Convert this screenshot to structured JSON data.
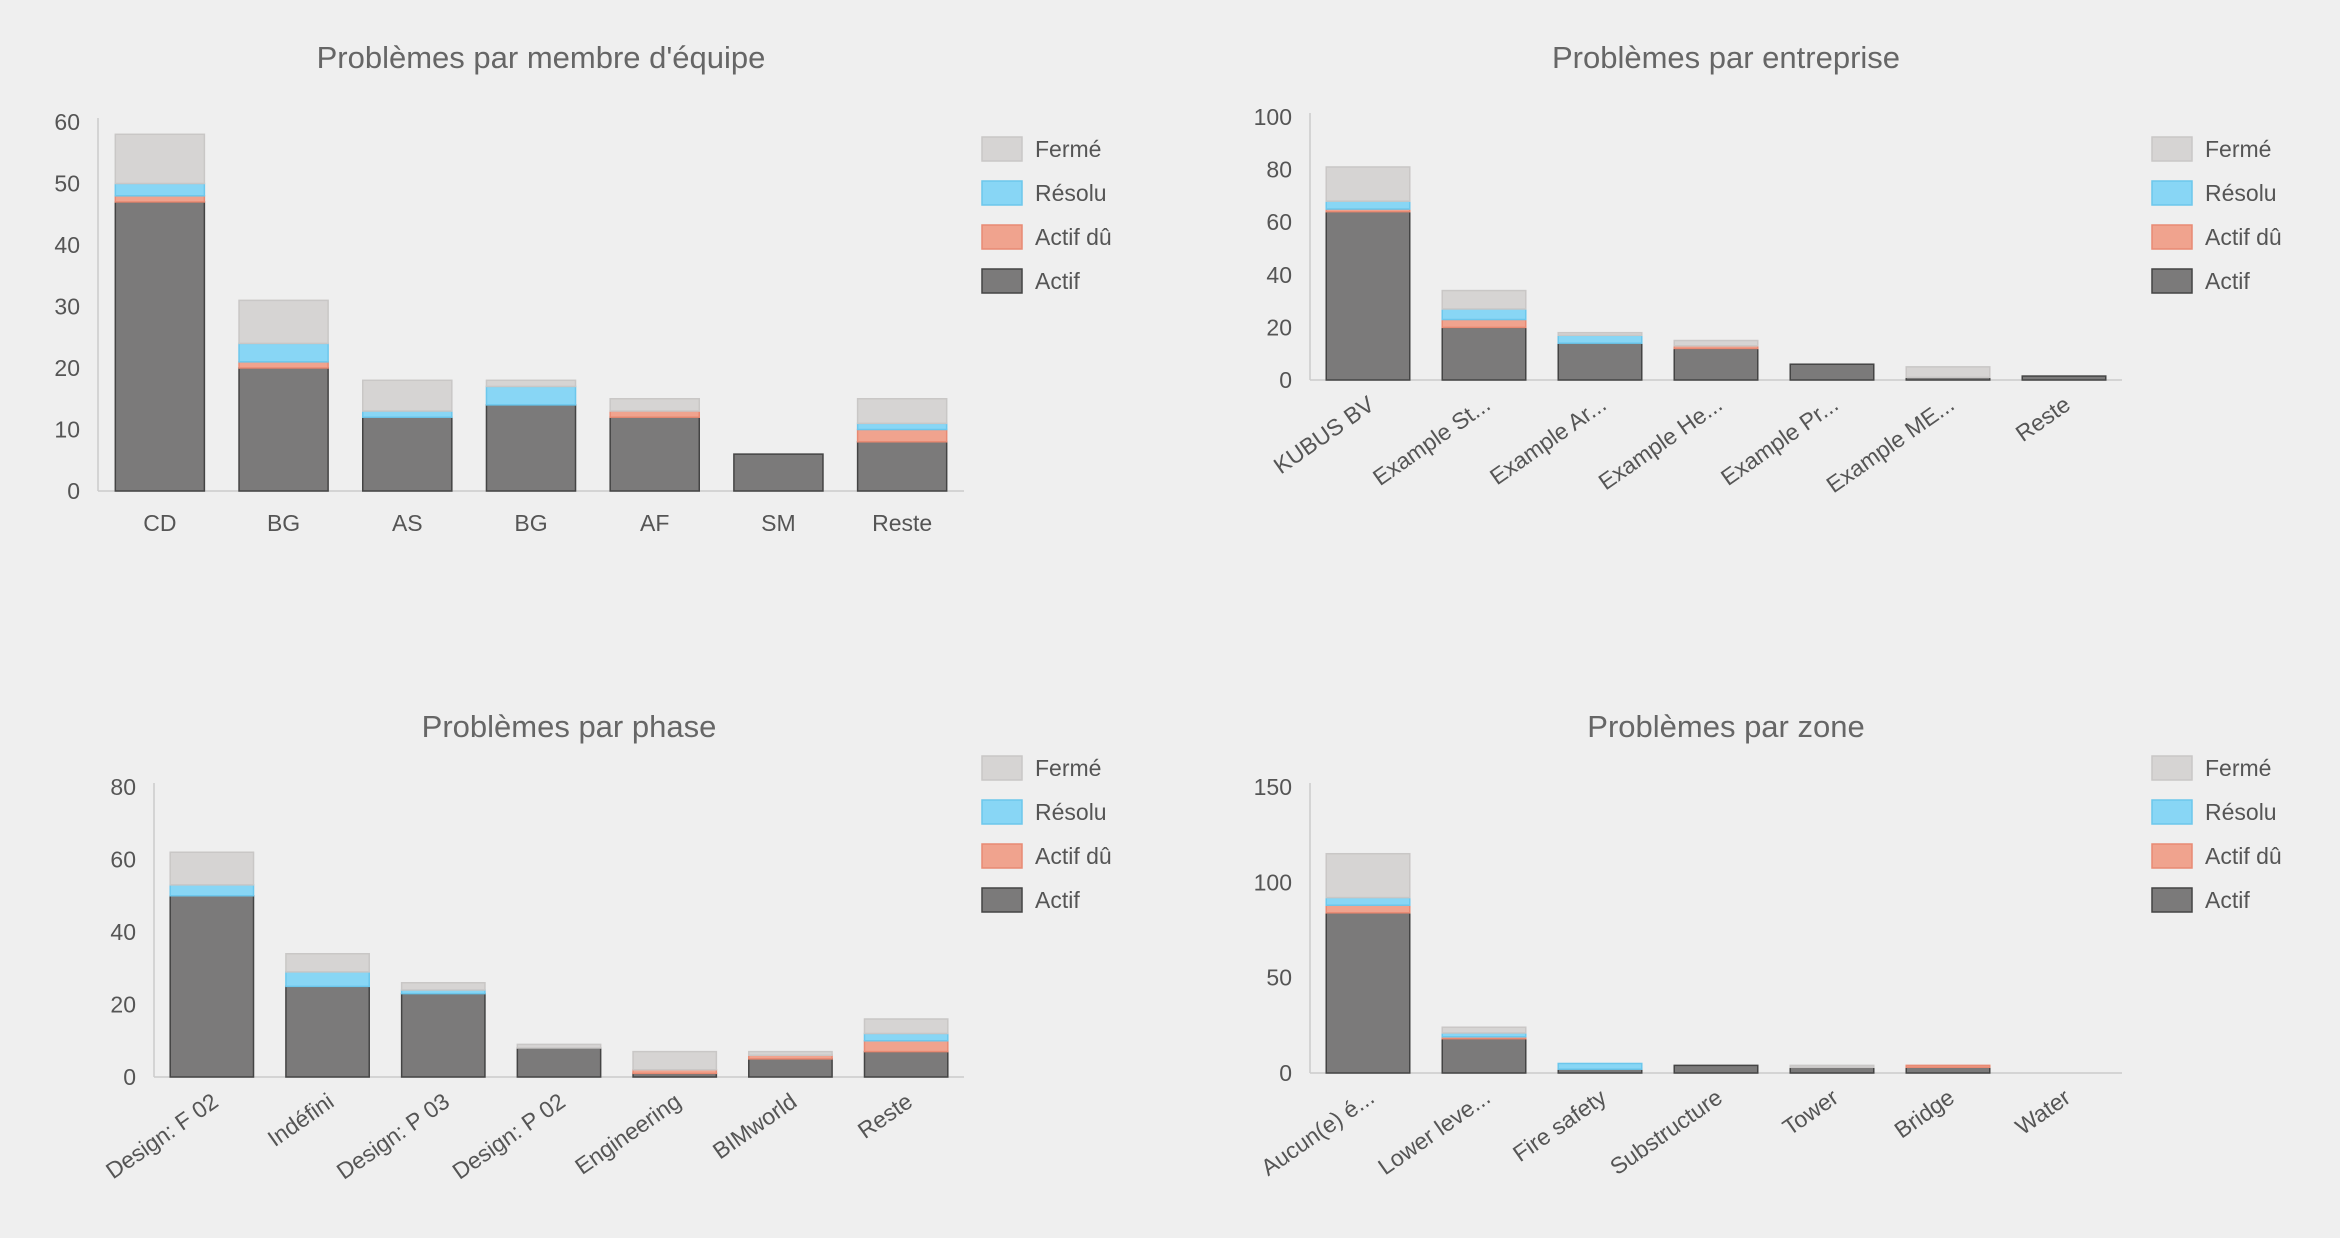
{
  "colors": {
    "ferme": "#d6d4d3",
    "resolu": "#88d6f5",
    "actif_du": "#f0a38e",
    "actif": "#7b7a7a",
    "background": "#efefef"
  },
  "chart_data": [
    {
      "type": "bar",
      "stacked": true,
      "title": "Problèmes par membre d'équipe",
      "categories": [
        "CD",
        "BG",
        "AS",
        "BG",
        "AF",
        "SM",
        "Reste"
      ],
      "ylim": [
        0,
        60
      ],
      "yticks": [
        0,
        10,
        20,
        30,
        40,
        50,
        60
      ],
      "rotate_labels": false,
      "legend_position": "right",
      "grid": false,
      "series": [
        {
          "name": "Actif",
          "values": [
            47,
            20,
            12,
            14,
            12,
            6,
            8
          ]
        },
        {
          "name": "Actif dû",
          "values": [
            1,
            1,
            0,
            0,
            1,
            0,
            2
          ]
        },
        {
          "name": "Résolu",
          "values": [
            2,
            3,
            1,
            3,
            0,
            0,
            1
          ]
        },
        {
          "name": "Fermé",
          "values": [
            8,
            7,
            5,
            1,
            2,
            0,
            4
          ]
        }
      ]
    },
    {
      "type": "bar",
      "stacked": true,
      "title": "Problèmes par entreprise",
      "categories": [
        "KUBUS BV",
        "Example St...",
        "Example Ar...",
        "Example He...",
        "Example Pr...",
        "Example ME...",
        "Reste"
      ],
      "ylim": [
        0,
        100
      ],
      "yticks": [
        0,
        20,
        40,
        60,
        80,
        100
      ],
      "rotate_labels": true,
      "legend_position": "right",
      "grid": false,
      "series": [
        {
          "name": "Actif",
          "values": [
            64,
            20,
            14,
            12,
            6,
            1,
            1.5
          ]
        },
        {
          "name": "Actif dû",
          "values": [
            1,
            3,
            0,
            1,
            0,
            0,
            0
          ]
        },
        {
          "name": "Résolu",
          "values": [
            3,
            4,
            3,
            0,
            0,
            0,
            0
          ]
        },
        {
          "name": "Fermé",
          "values": [
            13,
            7,
            1,
            2,
            0,
            4,
            0
          ]
        }
      ]
    },
    {
      "type": "bar",
      "stacked": true,
      "title": "Problèmes par phase",
      "categories": [
        "Design: F 02",
        "Indéfini",
        "Design: P 03",
        "Design: P 02",
        "Engineering",
        "BIMworld",
        "Reste"
      ],
      "ylim": [
        0,
        80
      ],
      "yticks": [
        0,
        20,
        40,
        60,
        80
      ],
      "rotate_labels": true,
      "legend_position": "right",
      "grid": false,
      "series": [
        {
          "name": "Actif",
          "values": [
            50,
            25,
            23,
            8,
            1,
            5,
            7
          ]
        },
        {
          "name": "Actif dû",
          "values": [
            0,
            0,
            0,
            0,
            1,
            1,
            3
          ]
        },
        {
          "name": "Résolu",
          "values": [
            3,
            4,
            1,
            0,
            0,
            0,
            2
          ]
        },
        {
          "name": "Fermé",
          "values": [
            9,
            5,
            2,
            1,
            5,
            1,
            4
          ]
        }
      ]
    },
    {
      "type": "bar",
      "stacked": true,
      "title": "Problèmes par zone",
      "categories": [
        "Aucun(e) é...",
        "Lower leve...",
        "Fire safety",
        "Substructure",
        "Tower",
        "Bridge",
        "Water"
      ],
      "ylim": [
        0,
        150
      ],
      "yticks": [
        0,
        50,
        100,
        150
      ],
      "rotate_labels": true,
      "legend_position": "right",
      "grid": false,
      "series": [
        {
          "name": "Actif",
          "values": [
            84,
            18,
            2,
            4,
            3,
            3,
            0
          ]
        },
        {
          "name": "Actif dû",
          "values": [
            4,
            1,
            0,
            0,
            0,
            1,
            0
          ]
        },
        {
          "name": "Résolu",
          "values": [
            4,
            2,
            3,
            0,
            0,
            0,
            0
          ]
        },
        {
          "name": "Fermé",
          "values": [
            23,
            3,
            0,
            0,
            1,
            0,
            0
          ]
        }
      ]
    }
  ],
  "legend": {
    "items": [
      "Fermé",
      "Résolu",
      "Actif dû",
      "Actif"
    ]
  }
}
